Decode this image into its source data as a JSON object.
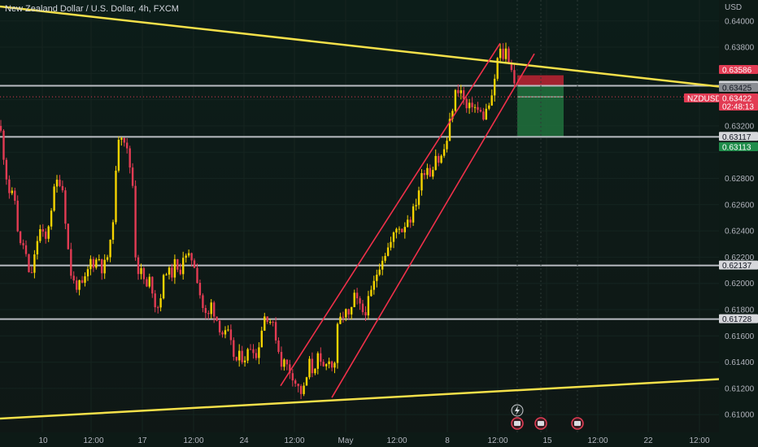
{
  "header": {
    "title": "New Zealand Dollar / U.S. Dollar, 4h, FXCM",
    "currency": "USD"
  },
  "colors": {
    "background": "#0e1a17",
    "bull": "#f5d300",
    "bear": "#e23b53",
    "trend": "#f4e04a",
    "channel": "#f0304a",
    "level": "#b9bcc2",
    "stop_zone": "#b42332",
    "target_zone": "#1f6d3b"
  },
  "price_axis": {
    "ticks": [
      "0.64000",
      "0.63800",
      "0.63200",
      "0.62800",
      "0.62600",
      "0.62400",
      "0.62200",
      "0.62000",
      "0.61800",
      "0.61600",
      "0.61400",
      "0.61200",
      "0.61000"
    ],
    "tags": [
      {
        "label": "0.63586",
        "kind": "stop"
      },
      {
        "label": "0.63506",
        "kind": "level"
      },
      {
        "label": "0.63425",
        "kind": "level-dim"
      },
      {
        "label": "NZDUSD",
        "kind": "symbol"
      },
      {
        "label": "0.63422",
        "kind": "price"
      },
      {
        "label": "02:48:13",
        "kind": "timer"
      },
      {
        "label": "0.63117",
        "kind": "level"
      },
      {
        "label": "0.63113",
        "kind": "target"
      },
      {
        "label": "0.62137",
        "kind": "level"
      },
      {
        "label": "0.61728",
        "kind": "level"
      }
    ]
  },
  "time_axis": {
    "labels": [
      "10",
      "12:00",
      "17",
      "12:00",
      "24",
      "12:00",
      "May",
      "12:00",
      "8",
      "12:00",
      "15",
      "12:00",
      "22",
      "12:00"
    ]
  },
  "chart_data": {
    "type": "candlestick",
    "title": "New Zealand Dollar / U.S. Dollar, 4h, FXCM",
    "symbol": "NZDUSD",
    "ylabel": "USD",
    "ylim": [
      0.6097,
      0.6411
    ],
    "x_labels": [
      "10",
      "12:00",
      "17",
      "12:00",
      "24",
      "12:00",
      "May",
      "12:00",
      "8",
      "12:00",
      "15",
      "12:00",
      "22",
      "12:00"
    ],
    "current_price": 0.63422,
    "countdown": "02:48:13",
    "horizontal_levels": [
      0.63506,
      0.63117,
      0.62137,
      0.61728
    ],
    "anchors": [
      [
        0,
        0.632
      ],
      [
        3,
        0.6305
      ],
      [
        7,
        0.6285
      ],
      [
        12,
        0.6268
      ],
      [
        18,
        0.6265
      ],
      [
        22,
        0.624
      ],
      [
        26,
        0.6225
      ],
      [
        30,
        0.6232
      ],
      [
        35,
        0.6205
      ],
      [
        40,
        0.621
      ],
      [
        48,
        0.6242
      ],
      [
        56,
        0.6232
      ],
      [
        62,
        0.6254
      ],
      [
        67,
        0.6272
      ],
      [
        72,
        0.6281
      ],
      [
        77,
        0.6272
      ],
      [
        81,
        0.6245
      ],
      [
        86,
        0.621
      ],
      [
        91,
        0.62
      ],
      [
        96,
        0.6198
      ],
      [
        101,
        0.6198
      ],
      [
        106,
        0.6204
      ],
      [
        111,
        0.6218
      ],
      [
        116,
        0.6215
      ],
      [
        121,
        0.6221
      ],
      [
        126,
        0.621
      ],
      [
        131,
        0.6218
      ],
      [
        136,
        0.623
      ],
      [
        141,
        0.6265
      ],
      [
        145,
        0.6312
      ],
      [
        149,
        0.6315
      ],
      [
        153,
        0.631
      ],
      [
        158,
        0.6295
      ],
      [
        163,
        0.6278
      ],
      [
        166,
        0.6225
      ],
      [
        170,
        0.621
      ],
      [
        175,
        0.6208
      ],
      [
        180,
        0.6195
      ],
      [
        185,
        0.6205
      ],
      [
        190,
        0.6185
      ],
      [
        195,
        0.6182
      ],
      [
        200,
        0.62
      ],
      [
        205,
        0.6212
      ],
      [
        210,
        0.6205
      ],
      [
        215,
        0.6215
      ],
      [
        220,
        0.6205
      ],
      [
        225,
        0.6222
      ],
      [
        230,
        0.6218
      ],
      [
        235,
        0.622
      ],
      [
        240,
        0.6213
      ],
      [
        245,
        0.6195
      ],
      [
        250,
        0.618
      ],
      [
        255,
        0.6172
      ],
      [
        260,
        0.6185
      ],
      [
        265,
        0.6175
      ],
      [
        270,
        0.6167
      ],
      [
        275,
        0.616
      ],
      [
        280,
        0.6162
      ],
      [
        285,
        0.615
      ],
      [
        290,
        0.614
      ],
      [
        295,
        0.6145
      ],
      [
        300,
        0.6143
      ],
      [
        305,
        0.6148
      ],
      [
        310,
        0.6155
      ],
      [
        315,
        0.6143
      ],
      [
        320,
        0.616
      ],
      [
        325,
        0.6175
      ],
      [
        330,
        0.6175
      ],
      [
        335,
        0.6168
      ],
      [
        340,
        0.6158
      ],
      [
        345,
        0.614
      ],
      [
        350,
        0.614
      ],
      [
        355,
        0.6135
      ],
      [
        360,
        0.613
      ],
      [
        365,
        0.6122
      ],
      [
        370,
        0.6117
      ],
      [
        375,
        0.612
      ],
      [
        380,
        0.614
      ],
      [
        385,
        0.6132
      ],
      [
        390,
        0.6145
      ],
      [
        395,
        0.6135
      ],
      [
        400,
        0.6135
      ],
      [
        405,
        0.6145
      ],
      [
        410,
        0.613
      ],
      [
        415,
        0.6165
      ],
      [
        420,
        0.6175
      ],
      [
        425,
        0.6178
      ],
      [
        430,
        0.6172
      ],
      [
        435,
        0.619
      ],
      [
        440,
        0.6185
      ],
      [
        445,
        0.6178
      ],
      [
        450,
        0.618
      ],
      [
        455,
        0.619
      ],
      [
        460,
        0.62
      ],
      [
        465,
        0.6212
      ],
      [
        470,
        0.622
      ],
      [
        475,
        0.6225
      ],
      [
        480,
        0.623
      ],
      [
        485,
        0.6238
      ],
      [
        490,
        0.6245
      ],
      [
        495,
        0.624
      ],
      [
        500,
        0.625
      ],
      [
        505,
        0.625
      ],
      [
        510,
        0.6258
      ],
      [
        515,
        0.6272
      ],
      [
        520,
        0.6285
      ],
      [
        525,
        0.629
      ],
      [
        530,
        0.6282
      ],
      [
        535,
        0.63
      ],
      [
        540,
        0.6292
      ],
      [
        545,
        0.63
      ],
      [
        550,
        0.631
      ],
      [
        555,
        0.633
      ],
      [
        560,
        0.6345
      ],
      [
        565,
        0.635
      ],
      [
        570,
        0.634
      ],
      [
        575,
        0.633
      ],
      [
        580,
        0.6338
      ],
      [
        585,
        0.6333
      ],
      [
        590,
        0.633
      ],
      [
        595,
        0.6327
      ],
      [
        600,
        0.6335
      ],
      [
        605,
        0.634
      ],
      [
        610,
        0.6365
      ],
      [
        614,
        0.6378
      ],
      [
        618,
        0.6372
      ],
      [
        622,
        0.6378
      ],
      [
        626,
        0.637
      ],
      [
        630,
        0.6362
      ],
      [
        634,
        0.6345
      ]
    ],
    "trend_lines": [
      {
        "from": [
          0,
          0.6411
        ],
        "to": [
          884,
          0.635
        ]
      },
      {
        "from": [
          0,
          0.6097
        ],
        "to": [
          884,
          0.6127
        ]
      }
    ],
    "channel_lines": [
      {
        "from": [
          345,
          0.6122
        ],
        "to": [
          615,
          0.6383
        ]
      },
      {
        "from": [
          408,
          0.6113
        ],
        "to": [
          657,
          0.6375
        ]
      }
    ],
    "trade_zones": {
      "stop": {
        "top": 0.63586,
        "bottom": 0.63506,
        "from": 636,
        "to": 693
      },
      "target": {
        "top": 0.63506,
        "bottom": 0.63113,
        "from": 636,
        "to": 693
      }
    }
  }
}
